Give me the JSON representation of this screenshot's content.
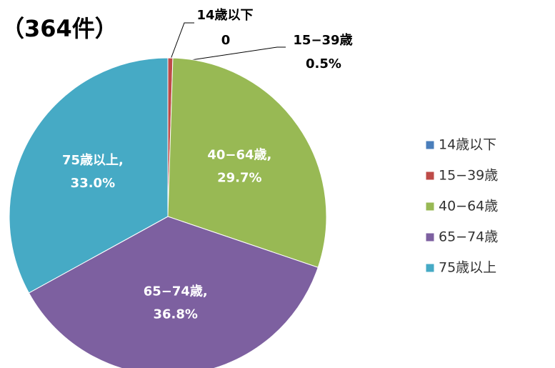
{
  "chart_data": {
    "type": "pie",
    "title": "（364件）",
    "categories": [
      "14歳以下",
      "15−39歳",
      "40−64歳",
      "65−74歳",
      "75歳以上"
    ],
    "values": [
      0,
      0.5,
      29.7,
      36.8,
      33.0
    ],
    "value_labels": [
      "0",
      "0.5%",
      "29.7%",
      "36.8%",
      "33.0%"
    ],
    "data_label_names": [
      "14歳以下",
      "15−39歳",
      "40−64歳,",
      "65−74歳,",
      "75歳以上,"
    ],
    "colors": [
      "#4a7ebb",
      "#be4b48",
      "#98b954",
      "#7d60a0",
      "#46aac5"
    ],
    "legend": "right"
  }
}
